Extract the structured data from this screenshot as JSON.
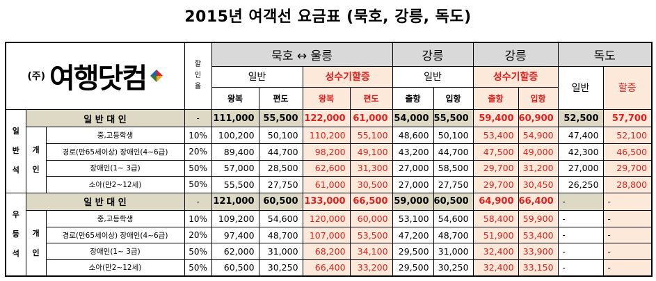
{
  "title": "2015년 여객선 요금표 (묵호, 강릉, 독도)",
  "brand": {
    "ju": "(주)",
    "name": "여행닷컴",
    "logo": "yeohaeng-dot-com-logo"
  },
  "header": {
    "discount_col": "할인율",
    "route1": "묵호 ↔ 울릉",
    "route2": "강릉",
    "route3": "강릉",
    "route4": "독도",
    "general": "일반",
    "seongsu": "성수기할증",
    "general2": "일반",
    "seongsu2": "성수기할증",
    "dokdo_general": "일반",
    "dokdo_surcharge": "할증",
    "round": "왕복",
    "oneway": "편도",
    "round2": "왕복",
    "oneway2": "편도",
    "depart": "출항",
    "enter": "입항",
    "depart2": "출항",
    "enter2": "입항"
  },
  "sections": [
    {
      "class_label": [
        "일",
        "반",
        "석"
      ],
      "group_label": [
        "개",
        "인"
      ],
      "rows": [
        {
          "name": "일 반 대 인",
          "discount": "-",
          "v": [
            "111,000",
            "55,500",
            "122,000",
            "61,000",
            "54,000",
            "55,500",
            "59,400",
            "60,900",
            "52,500",
            "57,700"
          ]
        },
        {
          "name": "중,고등학생",
          "discount": "10%",
          "v": [
            "100,200",
            "50,100",
            "110,200",
            "55,100",
            "48,600",
            "50,100",
            "53,400",
            "54,900",
            "47,400",
            "52,100"
          ]
        },
        {
          "name": "경로(만65세이상) 장애인(4~6급)",
          "discount": "20%",
          "v": [
            "89,400",
            "44,700",
            "98,200",
            "49,100",
            "43,200",
            "44,700",
            "47,500",
            "49,000",
            "42,300",
            "46,500"
          ]
        },
        {
          "name": "장애인(1~ 3급)",
          "discount": "50%",
          "v": [
            "57,000",
            "28,500",
            "62,600",
            "31,300",
            "27,000",
            "58,500",
            "29,700",
            "31,200",
            "27,000",
            "29,700"
          ]
        },
        {
          "name": "소아(만2~12세)",
          "discount": "50%",
          "v": [
            "55,500",
            "27,750",
            "61,000",
            "30,500",
            "27,000",
            "27,750",
            "29,700",
            "30,450",
            "26,250",
            "28,800"
          ]
        }
      ]
    },
    {
      "class_label": [
        "우",
        "등",
        "석"
      ],
      "group_label": [
        "개",
        "인"
      ],
      "rows": [
        {
          "name": "일 반 대 인",
          "discount": "-",
          "v": [
            "121,000",
            "60,500",
            "133,000",
            "66,500",
            "59,000",
            "60,500",
            "64,900",
            "66,400",
            "-",
            "-"
          ]
        },
        {
          "name": "중,고등학생",
          "discount": "10%",
          "v": [
            "109,200",
            "54,600",
            "120,000",
            "60,000",
            "53,100",
            "54,600",
            "58,400",
            "59,900",
            "-",
            "-"
          ]
        },
        {
          "name": "경로(만65세이상) 장애인(4~6급)",
          "discount": "20%",
          "v": [
            "97,400",
            "48,700",
            "107,000",
            "53,500",
            "47,200",
            "48,700",
            "51,900",
            "53,400",
            "-",
            "-"
          ]
        },
        {
          "name": "장애인(1~ 3급)",
          "discount": "50%",
          "v": [
            "62,000",
            "31,000",
            "68,200",
            "34,100",
            "29,500",
            "31,000",
            "32,400",
            "33,900",
            "-",
            "-"
          ]
        },
        {
          "name": "소아(만2~12세)",
          "discount": "50%",
          "v": [
            "60,500",
            "30,250",
            "66,400",
            "33,200",
            "29,500",
            "30,250",
            "32,400",
            "33,150",
            "-",
            "-"
          ]
        }
      ]
    }
  ],
  "colors": {
    "red": "#e0201e",
    "peach": "#fde9d9",
    "grey": "#d9d9d9",
    "tan": "#ddd9c4"
  }
}
